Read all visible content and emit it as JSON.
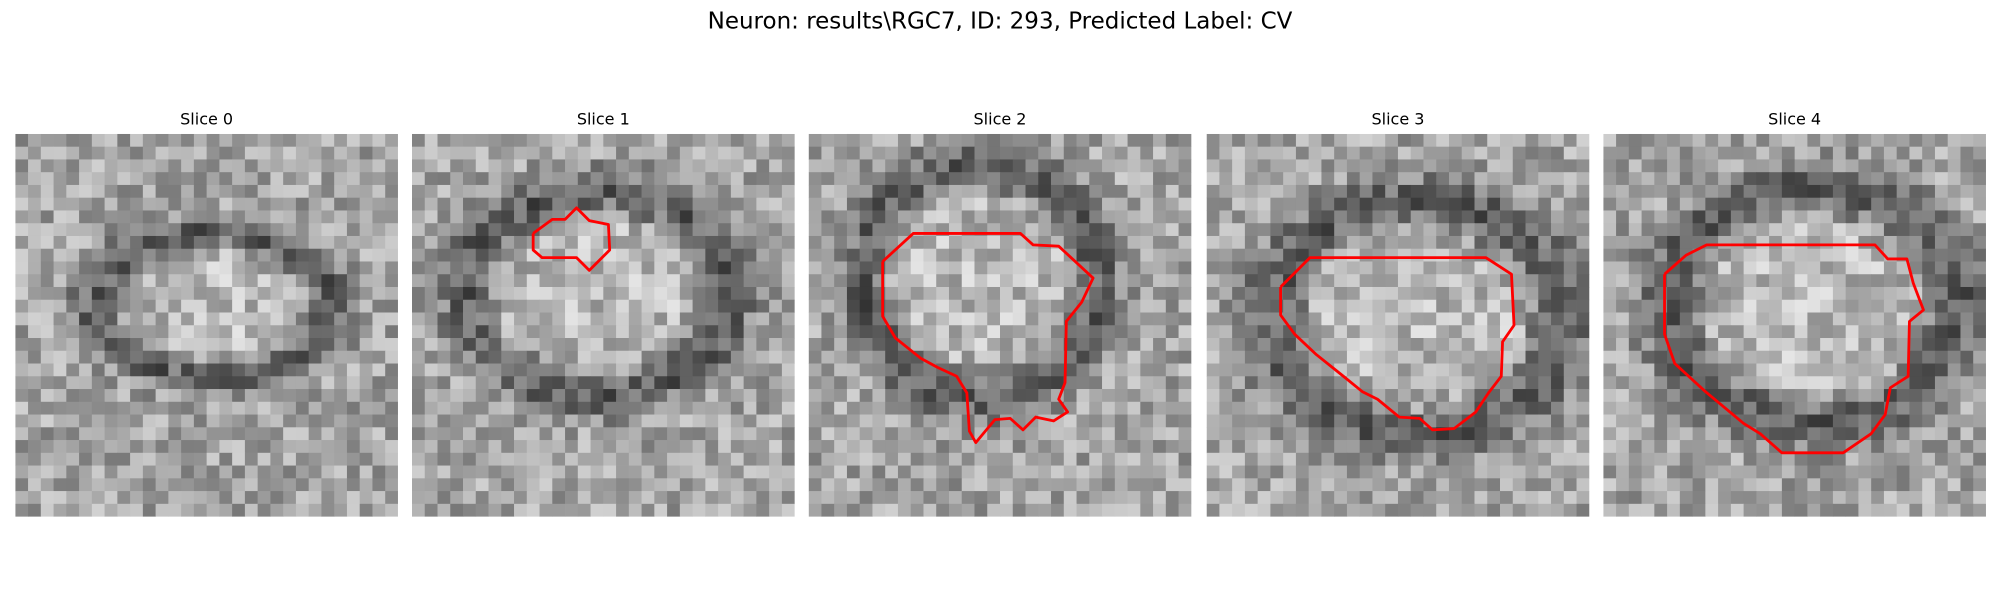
{
  "header": {
    "title": "Neuron: results\\RGC7, ID: 293, Predicted Label: CV"
  },
  "panels": [
    {
      "title": "Slice 0"
    },
    {
      "title": "Slice 1"
    },
    {
      "title": "Slice 2"
    },
    {
      "title": "Slice 3"
    },
    {
      "title": "Slice 4"
    }
  ]
}
